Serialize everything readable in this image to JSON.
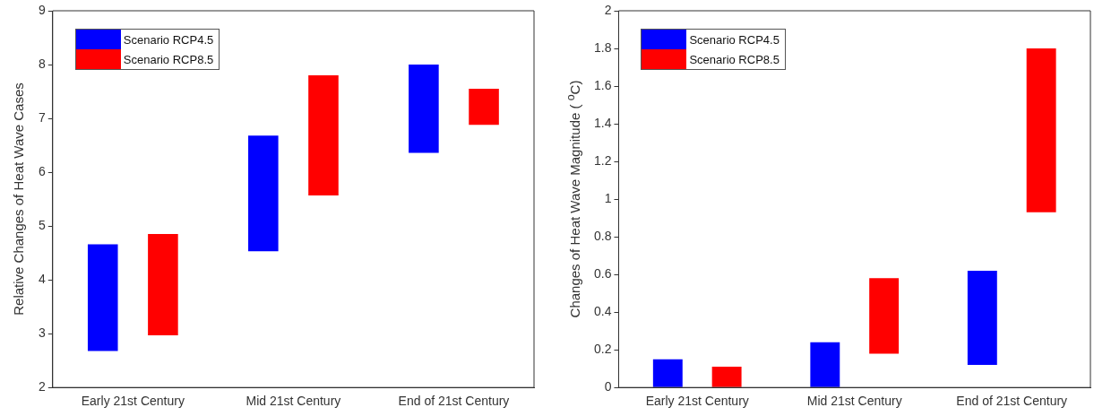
{
  "chart_data": [
    {
      "type": "bar",
      "categories": [
        "Early 21st Century",
        "Mid 21st Century",
        "End of 21st Century"
      ],
      "ylabel": "Relative Changes of Heat Wave Cases",
      "ylim": [
        2,
        9
      ],
      "yticks": [
        2,
        3,
        4,
        5,
        6,
        7,
        8,
        9
      ],
      "grid": false,
      "legend": "top left",
      "series": [
        {
          "name": "Scenario RCP4.5",
          "color": "#0000ff",
          "base": [
            2.68,
            4.53,
            6.36
          ],
          "values": [
            1.98,
            2.15,
            1.64
          ]
        },
        {
          "name": "Scenario RCP8.5",
          "color": "#ff0000",
          "base": [
            2.97,
            5.57,
            6.88
          ],
          "values": [
            1.88,
            2.23,
            0.67
          ]
        }
      ]
    },
    {
      "type": "bar",
      "categories": [
        "Early 21st Century",
        "Mid 21st Century",
        "End of 21st Century"
      ],
      "ylabel": "Changes of Heat Wave Magnitude ( $^{o}$C)",
      "ylim": [
        0,
        2
      ],
      "yticks": [
        0,
        0.2,
        0.4,
        0.6,
        0.8,
        1,
        1.2,
        1.4,
        1.6,
        1.8,
        2
      ],
      "grid": false,
      "legend": "top left",
      "series": [
        {
          "name": "Scenario RCP4.5",
          "color": "#0000ff",
          "base": [
            0,
            0,
            0.12
          ],
          "values": [
            0.15,
            0.24,
            0.5
          ]
        },
        {
          "name": "Scenario RCP8.5",
          "color": "#ff0000",
          "base": [
            0,
            0.18,
            0.93
          ],
          "values": [
            0.11,
            0.4,
            0.87
          ]
        }
      ]
    }
  ]
}
